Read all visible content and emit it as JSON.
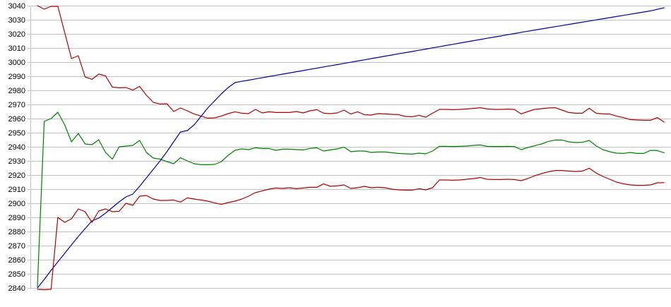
{
  "chart_data": {
    "type": "line",
    "title": "",
    "legend": "none",
    "grid": "horizontal-only",
    "background_color": "#ffffff",
    "grid_color": "#c0c0c0",
    "axis_color": "#c0c0c0",
    "label_color": "#000000",
    "y_axis": {
      "min": 2840,
      "max": 3040,
      "step": 10,
      "tick_labels": [
        "3040",
        "3030",
        "3020",
        "3010",
        "3000",
        "2990",
        "2980",
        "2970",
        "2960",
        "2950",
        "2940",
        "2930",
        "2920",
        "2910",
        "2900",
        "2890",
        "2880",
        "2870",
        "2860",
        "2850",
        "2840"
      ]
    },
    "x_axis": {
      "tick_labels": [],
      "point_count": 93
    },
    "series": [
      {
        "name": "upper-dark-red-line",
        "color": "#b00000",
        "values": [
          3040,
          3037.5,
          3039.5,
          3039.5,
          3021,
          3002.5,
          3004.5,
          2989.5,
          2987.8,
          2991.5,
          2990.2,
          2982.3,
          2981.8,
          2982,
          2980.2,
          2982.8,
          2976.5,
          2971.5,
          2970.3,
          2970.5,
          2965,
          2967.5,
          2965.5,
          2963.2,
          2961.8,
          2960.3,
          2960.5,
          2961.8,
          2963.5,
          2964.8,
          2963.8,
          2963.5,
          2966.5,
          2964,
          2964.8,
          2964.3,
          2964.3,
          2964.3,
          2965,
          2964,
          2965.5,
          2966.3,
          2963.8,
          2963.5,
          2964,
          2966,
          2963.2,
          2964.8,
          2962.7,
          2962.5,
          2963.5,
          2963.3,
          2963,
          2962.8,
          2961.5,
          2961.3,
          2962.3,
          2961,
          2963.8,
          2966.5,
          2966.5,
          2966.3,
          2966.5,
          2966.8,
          2967.2,
          2967.7,
          2966.8,
          2966.5,
          2966.5,
          2966.7,
          2966.5,
          2963.3,
          2965,
          2966.5,
          2967,
          2967.5,
          2967.7,
          2966,
          2964.3,
          2963.8,
          2963.8,
          2967.3,
          2963.8,
          2963.3,
          2963.2,
          2961.8,
          2960.7,
          2959.3,
          2959,
          2958.8,
          2958.8,
          2960.7,
          2957.5
        ]
      },
      {
        "name": "green-line",
        "color": "#008000",
        "values": [
          2841,
          2958,
          2960,
          2964.5,
          2955.5,
          2943.5,
          2949.5,
          2942,
          2941.5,
          2945,
          2936,
          2931.3,
          2940,
          2940.5,
          2941,
          2944.5,
          2936,
          2932,
          2931.3,
          2929.5,
          2928,
          2932.3,
          2930,
          2928,
          2927.3,
          2927.3,
          2927.5,
          2929.5,
          2934,
          2937.5,
          2938.5,
          2938,
          2939.3,
          2938.8,
          2938.8,
          2937.5,
          2938.3,
          2938.3,
          2938,
          2937.8,
          2938.8,
          2939.3,
          2937,
          2937.8,
          2938.5,
          2939.8,
          2936.5,
          2937,
          2937,
          2936,
          2936.3,
          2936.3,
          2935.8,
          2935.3,
          2935,
          2934.8,
          2935.5,
          2935,
          2937,
          2940.3,
          2940.3,
          2940.2,
          2940.3,
          2940.5,
          2941,
          2941.3,
          2940.3,
          2940.2,
          2940.2,
          2940.3,
          2940.2,
          2938,
          2939.5,
          2940.8,
          2942,
          2943.8,
          2944.8,
          2944.8,
          2943.5,
          2943,
          2943.2,
          2944.5,
          2940.7,
          2938,
          2936.5,
          2935.5,
          2935.3,
          2936,
          2935.3,
          2935.3,
          2937.5,
          2937.3,
          2935.8
        ]
      },
      {
        "name": "blue-line",
        "color": "#0000a8",
        "values": [
          2840,
          2846,
          2852.5,
          2858.5,
          2864.5,
          2870.5,
          2876.5,
          2882,
          2887.5,
          2889.5,
          2893,
          2897,
          2901,
          2904.5,
          2906.5,
          2912,
          2918,
          2924,
          2930,
          2936.5,
          2943.5,
          2950.5,
          2951.5,
          2955.5,
          2961.5,
          2967.5,
          2972.5,
          2977.5,
          2982,
          2985.5,
          2986.4,
          2987.2,
          2988.1,
          2988.9,
          2989.8,
          2990.6,
          2991.5,
          2992.3,
          2993.2,
          2994,
          2994.9,
          2995.7,
          2996.6,
          2997.4,
          2998.2,
          2999.1,
          2999.9,
          3000.8,
          3001.6,
          3002.5,
          3003.3,
          3004.2,
          3005,
          3005.9,
          3006.7,
          3007.5,
          3008.4,
          3009.2,
          3010.1,
          3010.9,
          3011.8,
          3012.6,
          3013.5,
          3014.3,
          3015.2,
          3016,
          3016.9,
          3017.7,
          3018.5,
          3019.4,
          3020.2,
          3021.1,
          3021.9,
          3022.7,
          3023.5,
          3024.3,
          3025.1,
          3025.9,
          3026.7,
          3027.5,
          3028.3,
          3029.1,
          3029.9,
          3030.7,
          3031.5,
          3032.3,
          3033.1,
          3033.9,
          3034.7,
          3035.5,
          3036.3,
          3037.4,
          3038.5
        ]
      },
      {
        "name": "lower-dark-red-line",
        "color": "#b00000",
        "values": [
          2839,
          2838.5,
          2839,
          2890,
          2886.5,
          2889,
          2896,
          2894,
          2886.5,
          2894.5,
          2896,
          2894,
          2894.3,
          2900,
          2898.5,
          2905,
          2905.5,
          2903,
          2902,
          2902,
          2902.3,
          2900.8,
          2903.8,
          2903,
          2902.3,
          2901.5,
          2900.3,
          2899.2,
          2900.5,
          2901.5,
          2903,
          2905,
          2907.5,
          2908.8,
          2910,
          2910.8,
          2910.5,
          2911,
          2910.3,
          2910.8,
          2911.3,
          2911.3,
          2913.7,
          2912,
          2912.3,
          2913,
          2910.5,
          2911,
          2912,
          2911,
          2911.3,
          2911,
          2910,
          2909.5,
          2909.3,
          2909.3,
          2910.3,
          2909.5,
          2911,
          2916.5,
          2916.5,
          2916.3,
          2916.5,
          2917,
          2917.5,
          2918.2,
          2917,
          2916.8,
          2916.8,
          2917,
          2916.8,
          2916,
          2917.5,
          2919.5,
          2921,
          2922.3,
          2923.2,
          2923.2,
          2922.8,
          2922.5,
          2922.8,
          2924.8,
          2921.5,
          2919,
          2917,
          2915,
          2913.8,
          2913,
          2912.7,
          2912.7,
          2913,
          2914.5,
          2914.6
        ]
      }
    ],
    "plot_geometry_note": "y gridlines every 10 units; lines plotted left-to-right across full width"
  }
}
